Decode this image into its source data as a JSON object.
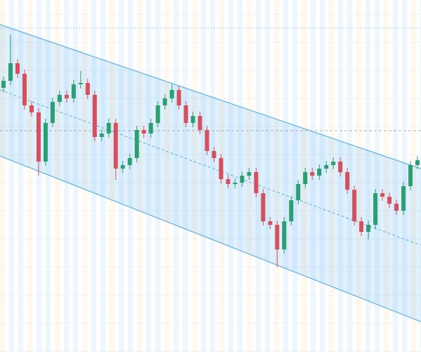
{
  "chart_data": {
    "type": "candlestick",
    "ylim": [
      0,
      501
    ],
    "up_color": "#2c9f72",
    "down_color": "#d4505f",
    "open": [
      376,
      386,
      411,
      396,
      351,
      341,
      271,
      326,
      356,
      366,
      361,
      381,
      383,
      366,
      306,
      311,
      326,
      261,
      266,
      276,
      316,
      311,
      326,
      351,
      361,
      373,
      351,
      326,
      336,
      316,
      286,
      276,
      246,
      239,
      241,
      251,
      256,
      226,
      186,
      181,
      146,
      186,
      216,
      239,
      256,
      251,
      261,
      266,
      271,
      256,
      231,
      186,
      171,
      181,
      226,
      221,
      211,
      201,
      236,
      266
    ],
    "high": [
      392,
      451,
      417,
      402,
      357,
      347,
      332,
      362,
      372,
      372,
      387,
      400,
      389,
      372,
      317,
      332,
      332,
      272,
      282,
      322,
      322,
      332,
      357,
      367,
      381,
      379,
      357,
      342,
      342,
      322,
      292,
      282,
      252,
      247,
      257,
      262,
      262,
      232,
      192,
      187,
      192,
      222,
      245,
      262,
      262,
      267,
      272,
      277,
      277,
      262,
      237,
      192,
      187,
      232,
      232,
      227,
      217,
      242,
      272,
      279
    ],
    "low": [
      370,
      380,
      390,
      345,
      335,
      251,
      265,
      320,
      350,
      355,
      355,
      375,
      360,
      300,
      300,
      305,
      245,
      255,
      260,
      270,
      305,
      305,
      320,
      345,
      355,
      345,
      320,
      320,
      310,
      280,
      270,
      240,
      233,
      233,
      235,
      245,
      220,
      180,
      175,
      121,
      140,
      180,
      210,
      233,
      245,
      245,
      255,
      260,
      250,
      225,
      180,
      165,
      160,
      175,
      215,
      205,
      195,
      195,
      230,
      260
    ],
    "close": [
      386,
      411,
      396,
      351,
      341,
      271,
      326,
      356,
      366,
      361,
      381,
      383,
      366,
      306,
      311,
      326,
      261,
      266,
      276,
      316,
      311,
      326,
      351,
      361,
      373,
      351,
      326,
      336,
      316,
      286,
      276,
      246,
      239,
      241,
      251,
      256,
      226,
      186,
      181,
      146,
      186,
      216,
      239,
      256,
      251,
      261,
      266,
      271,
      256,
      231,
      186,
      171,
      181,
      226,
      221,
      211,
      201,
      236,
      266,
      273
    ]
  }
}
